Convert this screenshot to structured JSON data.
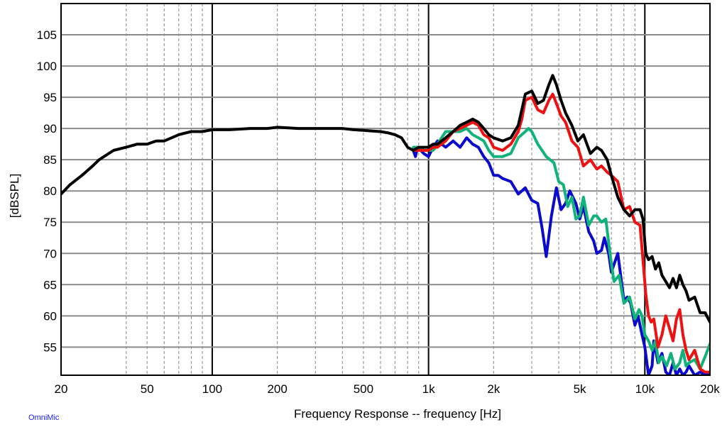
{
  "chart_data": {
    "type": "line",
    "xlabel": "Frequency Response -- frequency [Hz]",
    "ylabel": "[dBSPL]",
    "x_scale": "log",
    "xlim": [
      20,
      20000
    ],
    "ylim": [
      50.5,
      110
    ],
    "grid": true,
    "x_ticks": [
      {
        "value": 20,
        "label": "20"
      },
      {
        "value": 50,
        "label": "50"
      },
      {
        "value": 100,
        "label": "100"
      },
      {
        "value": 200,
        "label": "200"
      },
      {
        "value": 500,
        "label": "500"
      },
      {
        "value": 1000,
        "label": "1k"
      },
      {
        "value": 2000,
        "label": "2k"
      },
      {
        "value": 5000,
        "label": "5k"
      },
      {
        "value": 10000,
        "label": "10k"
      },
      {
        "value": 20000,
        "label": "20k"
      }
    ],
    "y_ticks": [
      55,
      60,
      65,
      70,
      75,
      80,
      85,
      90,
      95,
      100,
      105
    ],
    "series": [
      {
        "color": "#0a0acc",
        "x": [
          850,
          870,
          890,
          920,
          950,
          1000,
          1050,
          1100,
          1200,
          1300,
          1400,
          1500,
          1600,
          1700,
          1800,
          1900,
          2000,
          2100,
          2200,
          2400,
          2600,
          2800,
          3000,
          3200,
          3350,
          3500,
          3700,
          3900,
          4100,
          4300,
          4500,
          4800,
          5000,
          5200,
          5500,
          5800,
          6000,
          6300,
          6500,
          6800,
          7000,
          7500,
          8000,
          8300,
          8600,
          9000,
          9300,
          9700,
          10000,
          10400,
          10800,
          11000,
          11500,
          12000,
          12500,
          13000,
          13500,
          14000,
          14500,
          15000,
          15500,
          16000,
          17000,
          18000,
          19000,
          20000
        ],
        "y": [
          86.5,
          85.5,
          87.0,
          86.5,
          86.0,
          85.5,
          87.0,
          88.0,
          87.0,
          88.0,
          87.0,
          88.5,
          87.5,
          87.0,
          85.5,
          84.5,
          82.5,
          82.5,
          82.0,
          81.5,
          79.5,
          80.5,
          78.5,
          78.0,
          74.0,
          69.5,
          76.0,
          80.5,
          77.0,
          78.0,
          80.0,
          78.0,
          75.5,
          77.5,
          73.5,
          72.0,
          70.0,
          70.5,
          72.5,
          70.0,
          67.0,
          70.0,
          62.5,
          63.0,
          62.0,
          58.5,
          60.0,
          57.0,
          55.0,
          50.5,
          52.0,
          56.0,
          52.5,
          54.0,
          51.0,
          50.5,
          52.5,
          50.5,
          51.5,
          50.5,
          51.0,
          52.0,
          50.5,
          51.0,
          50.5,
          51.0
        ]
      },
      {
        "color": "#10b37a",
        "x": [
          850,
          900,
          950,
          1000,
          1050,
          1100,
          1200,
          1300,
          1400,
          1500,
          1600,
          1700,
          1800,
          1900,
          2000,
          2200,
          2400,
          2600,
          2800,
          2900,
          3000,
          3200,
          3500,
          3800,
          4000,
          4200,
          4400,
          4600,
          4800,
          5000,
          5200,
          5500,
          5800,
          6000,
          6300,
          6600,
          6900,
          7200,
          7600,
          8000,
          8500,
          9000,
          9400,
          9700,
          10000,
          10400,
          10800,
          11200,
          11600,
          12000,
          12600,
          13200,
          13800,
          14500,
          15000,
          15500,
          16000,
          17000,
          18000,
          19000,
          20000
        ],
        "y": [
          87.0,
          87.0,
          86.5,
          86.5,
          86.5,
          87.5,
          89.5,
          89.5,
          89.5,
          90.0,
          89.0,
          88.5,
          88.0,
          86.5,
          85.5,
          85.5,
          86.0,
          88.5,
          89.5,
          90.0,
          89.5,
          87.5,
          85.5,
          84.5,
          81.5,
          81.0,
          77.5,
          79.0,
          75.5,
          76.0,
          79.0,
          74.5,
          76.0,
          76.0,
          75.0,
          75.5,
          70.0,
          65.5,
          66.5,
          62.0,
          63.0,
          59.5,
          61.0,
          60.0,
          57.0,
          56.0,
          54.5,
          56.0,
          52.5,
          53.5,
          52.0,
          54.0,
          51.5,
          52.5,
          54.5,
          52.0,
          52.5,
          53.0,
          51.5,
          53.5,
          55.5
        ]
      },
      {
        "color": "#ee1111",
        "x": [
          850,
          900,
          950,
          1000,
          1050,
          1100,
          1200,
          1300,
          1400,
          1500,
          1600,
          1700,
          1800,
          1900,
          2000,
          2200,
          2400,
          2600,
          2700,
          2800,
          3000,
          3200,
          3400,
          3600,
          3750,
          3900,
          4100,
          4300,
          4600,
          4900,
          5200,
          5600,
          6000,
          6300,
          6700,
          7000,
          7500,
          8000,
          8500,
          9000,
          9500,
          9800,
          10100,
          10400,
          10700,
          11000,
          11500,
          12000,
          12500,
          13000,
          13500,
          14000,
          14500,
          15000,
          15500,
          16000,
          17000,
          18000,
          19000,
          20000
        ],
        "y": [
          86.5,
          86.5,
          86.5,
          86.5,
          87.0,
          87.0,
          88.0,
          89.5,
          90.0,
          90.5,
          91.0,
          90.5,
          89.0,
          88.5,
          87.0,
          86.5,
          87.5,
          89.5,
          91.5,
          94.5,
          95.0,
          93.0,
          92.5,
          94.5,
          95.5,
          94.0,
          92.0,
          91.0,
          88.0,
          87.0,
          84.0,
          85.0,
          83.5,
          84.0,
          83.0,
          82.5,
          81.5,
          77.0,
          77.5,
          75.0,
          74.5,
          69.0,
          63.5,
          60.0,
          59.0,
          59.5,
          55.0,
          57.0,
          60.0,
          58.0,
          56.0,
          59.5,
          61.0,
          57.0,
          54.5,
          53.0,
          54.5,
          51.5,
          51.0,
          51.0
        ]
      },
      {
        "color": "#000000",
        "x": [
          20,
          22,
          25,
          28,
          30,
          35,
          40,
          45,
          50,
          55,
          60,
          70,
          80,
          90,
          100,
          120,
          150,
          180,
          200,
          250,
          300,
          350,
          400,
          450,
          500,
          550,
          600,
          650,
          700,
          750,
          800,
          850,
          900,
          950,
          1000,
          1050,
          1100,
          1200,
          1300,
          1400,
          1500,
          1600,
          1700,
          1800,
          1900,
          2000,
          2200,
          2400,
          2600,
          2700,
          2800,
          3000,
          3200,
          3400,
          3600,
          3750,
          3900,
          4100,
          4300,
          4600,
          4900,
          5200,
          5600,
          6000,
          6300,
          6700,
          7000,
          7500,
          8000,
          8500,
          9000,
          9500,
          9800,
          10100,
          10400,
          10800,
          11200,
          11600,
          12000,
          12500,
          13000,
          13500,
          14000,
          14500,
          15000,
          15500,
          16000,
          17000,
          18000,
          19000,
          20000
        ],
        "y": [
          79.5,
          81.0,
          82.5,
          84.0,
          85.0,
          86.5,
          87.0,
          87.5,
          87.5,
          88.0,
          88.0,
          89.0,
          89.5,
          89.5,
          89.8,
          89.8,
          90.0,
          90.0,
          90.2,
          90.0,
          90.0,
          90.0,
          90.0,
          89.8,
          89.7,
          89.6,
          89.5,
          89.3,
          89.0,
          88.5,
          87.0,
          86.5,
          87.0,
          87.0,
          87.0,
          87.5,
          87.5,
          88.5,
          89.5,
          90.5,
          91.0,
          91.5,
          91.0,
          90.0,
          89.0,
          88.5,
          88.0,
          88.5,
          90.5,
          93.0,
          95.5,
          96.0,
          94.0,
          94.5,
          97.0,
          98.5,
          97.0,
          94.5,
          92.5,
          90.5,
          88.0,
          89.0,
          86.0,
          87.0,
          86.5,
          85.0,
          82.5,
          79.0,
          77.0,
          76.0,
          77.0,
          77.0,
          75.5,
          70.0,
          69.0,
          69.5,
          67.5,
          68.5,
          66.5,
          65.5,
          64.5,
          66.0,
          64.5,
          66.5,
          65.0,
          64.0,
          62.5,
          63.0,
          60.5,
          60.5,
          59.0
        ]
      }
    ]
  },
  "watermark": "OmniMic"
}
